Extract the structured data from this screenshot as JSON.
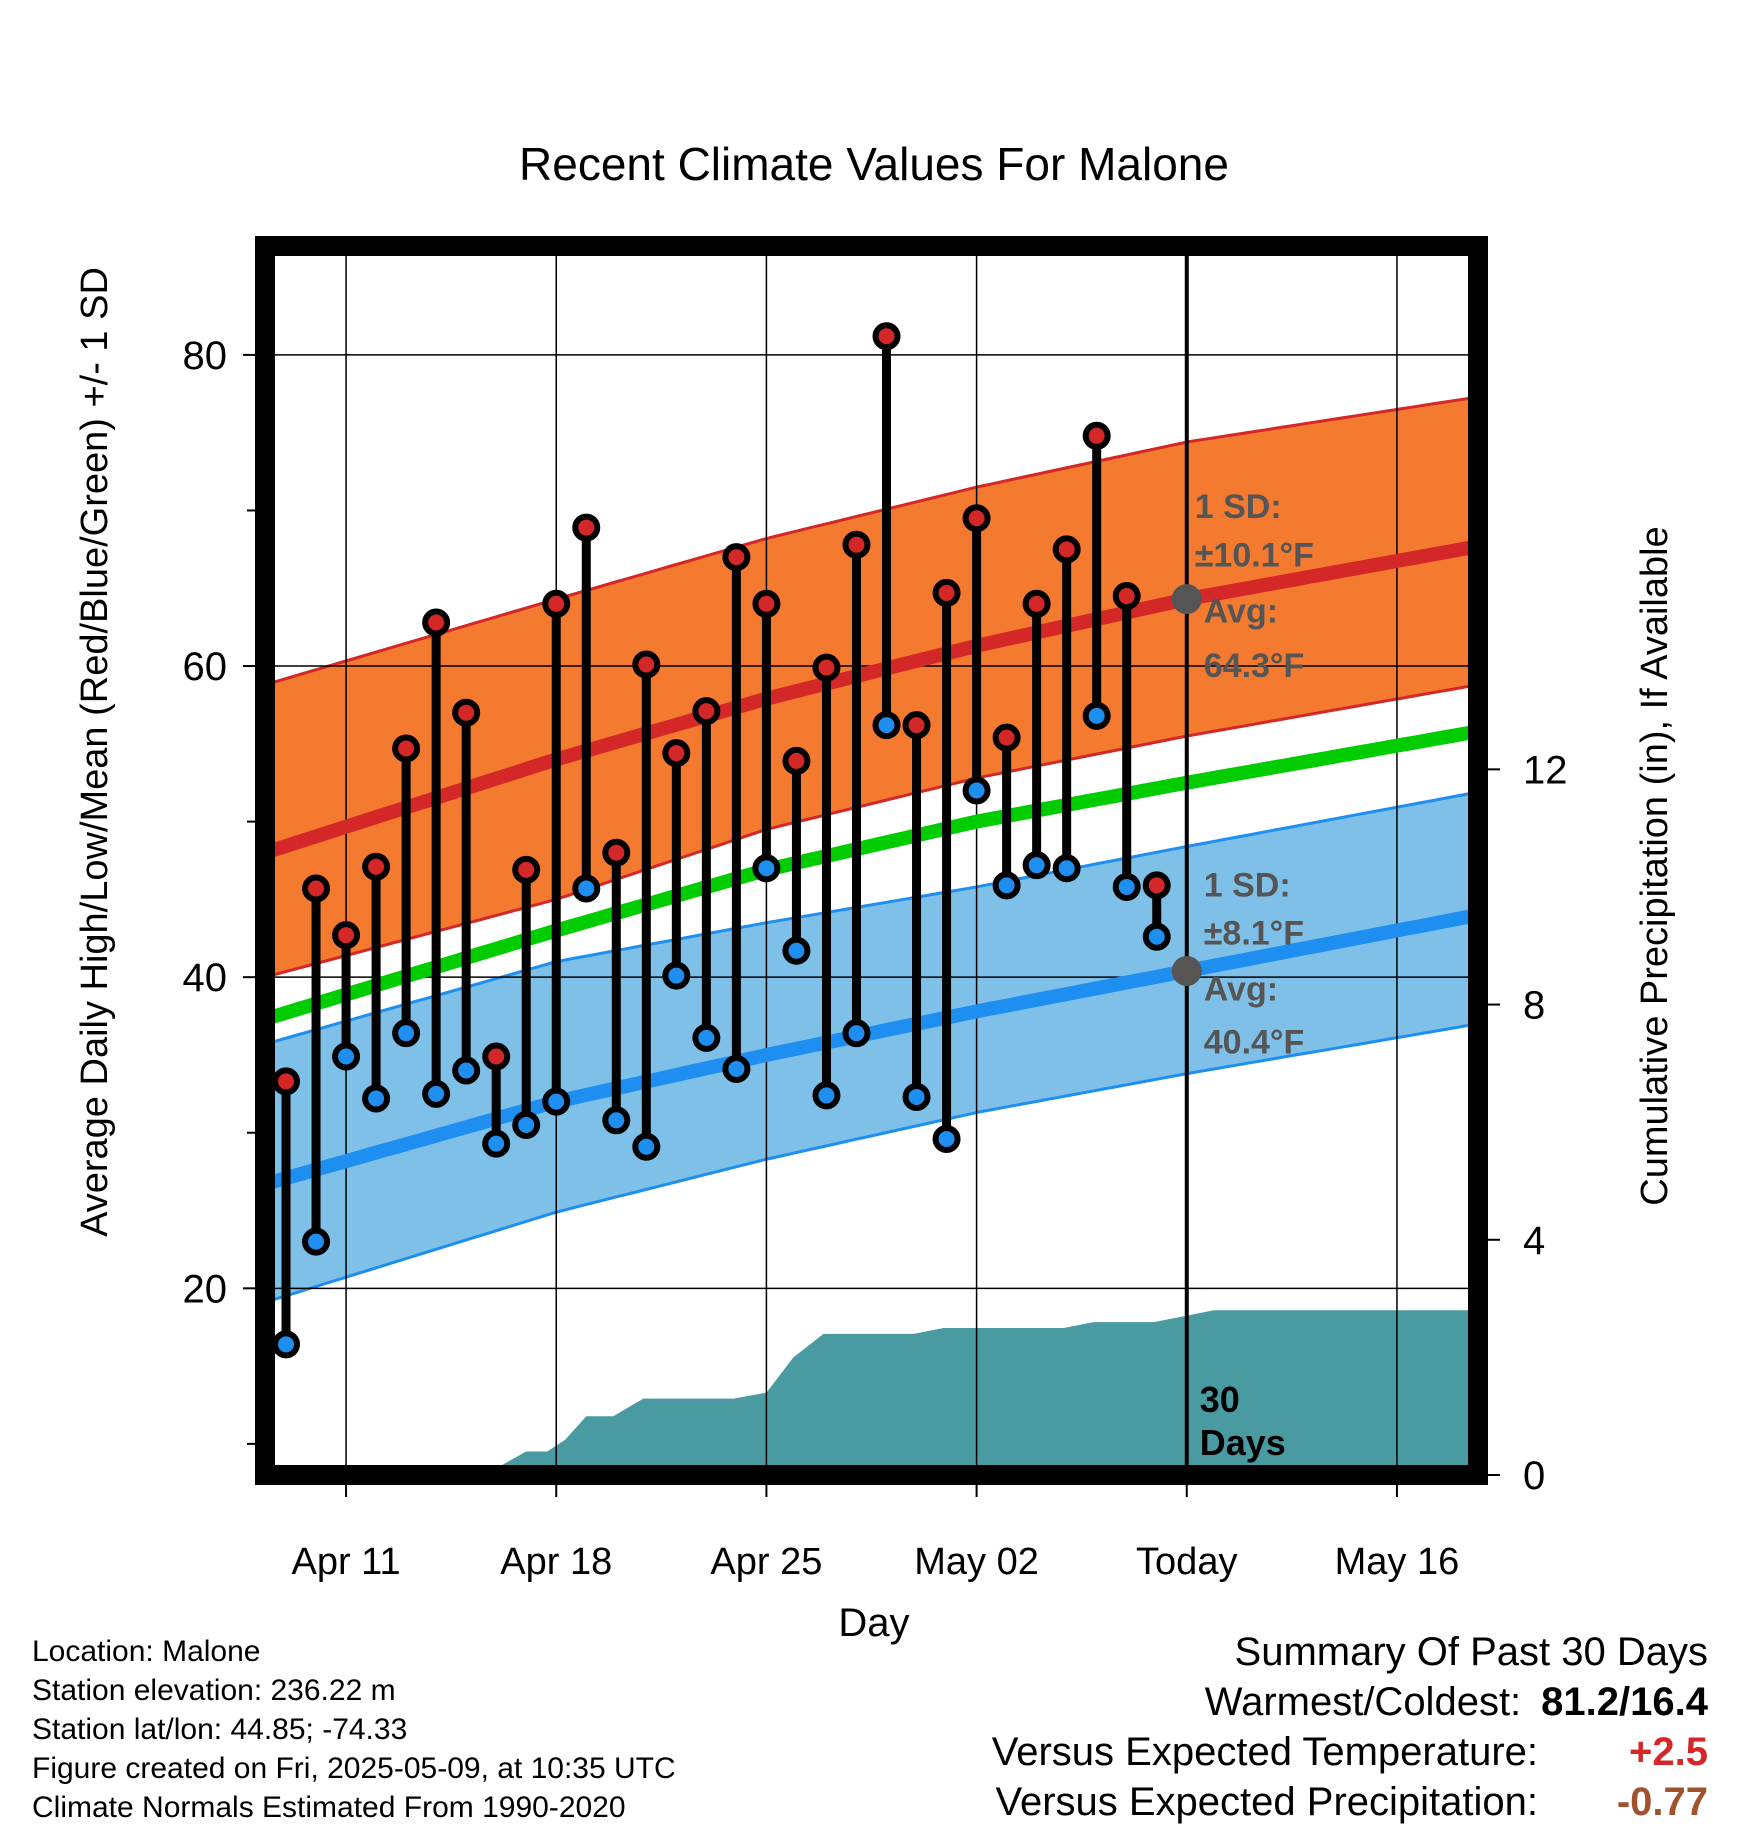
{
  "chart_data": {
    "type": "line",
    "title": "Recent Climate Values For Malone",
    "xlabel": "Day",
    "ylabel": "Average Daily High/Low/Mean (Red/Blue/Green) +/- 1 SD",
    "y2label": "Cumulative Precipitation (in), If Available",
    "x_ticks": [
      {
        "day": 0,
        "label": "Apr 11"
      },
      {
        "day": 7,
        "label": "Apr 18"
      },
      {
        "day": 14,
        "label": "Apr 25"
      },
      {
        "day": 21,
        "label": "May 02"
      },
      {
        "day": 28,
        "label": "Today"
      },
      {
        "day": 35,
        "label": "May 16"
      }
    ],
    "x_day_range": [
      -2.7,
      37.7
    ],
    "ylim": [
      8,
      87
    ],
    "y_ticks": [
      20,
      40,
      60,
      80
    ],
    "y2lim": [
      0,
      20.9
    ],
    "y2_ticks": [
      0,
      4,
      8,
      12
    ],
    "colors": {
      "high_band": "#f47a30",
      "high_line": "#d42727",
      "low_band": "#7fc0e8",
      "low_line": "#1e8ff0",
      "mean_line": "#00cc00",
      "precip": "#4a9aa2",
      "high_point": "#d42727",
      "low_point": "#1e8ff0",
      "avg_marker": "#555555",
      "annotation": "#555555"
    },
    "normals": {
      "days": [
        -2.7,
        7,
        14,
        21,
        28,
        37.7
      ],
      "high_avg": [
        48.0,
        54.0,
        57.9,
        61.3,
        64.3,
        67.7
      ],
      "high_sd_upper": [
        58.8,
        64.3,
        68.2,
        71.5,
        74.4,
        77.3
      ],
      "high_sd_lower": [
        40.0,
        45.0,
        49.5,
        52.8,
        55.5,
        58.8
      ],
      "mean": [
        37.3,
        43.0,
        46.9,
        50.0,
        52.5,
        55.8
      ],
      "low_avg": [
        26.7,
        32.0,
        35.0,
        37.8,
        40.4,
        44.0
      ],
      "low_sd_upper": [
        35.7,
        41.0,
        43.5,
        45.8,
        48.4,
        51.9
      ],
      "low_sd_lower": [
        19.1,
        24.9,
        28.3,
        31.3,
        33.8,
        37.0
      ]
    },
    "observations": {
      "days": [
        -2,
        -1,
        0,
        1,
        2,
        3,
        4,
        5,
        6,
        7,
        8,
        9,
        10,
        11,
        12,
        13,
        14,
        15,
        16,
        17,
        18,
        19,
        20,
        21,
        22,
        23,
        24,
        25,
        26,
        27
      ],
      "high": [
        33.3,
        45.7,
        42.7,
        47.1,
        54.7,
        62.8,
        57.0,
        34.9,
        46.9,
        64.0,
        68.9,
        48.0,
        60.1,
        54.4,
        57.1,
        67.0,
        64.0,
        53.9,
        59.9,
        67.8,
        81.2,
        56.2,
        64.7,
        69.5,
        55.4,
        64.0,
        67.5,
        74.8,
        64.5,
        45.9
      ],
      "low": [
        16.4,
        23.0,
        34.9,
        32.2,
        36.4,
        32.5,
        34.0,
        29.3,
        30.5,
        32.0,
        45.7,
        30.8,
        29.1,
        40.1,
        36.1,
        34.1,
        47.0,
        41.7,
        32.4,
        36.4,
        56.2,
        32.3,
        29.6,
        52.0,
        45.9,
        47.2,
        47.0,
        56.8,
        45.8,
        42.6
      ]
    },
    "precip": {
      "days": [
        -2.7,
        1.2,
        2.0,
        2.7,
        3.6,
        4.6,
        5.3,
        6.0,
        6.7,
        7.3,
        8.0,
        8.9,
        9.9,
        10.9,
        11.9,
        12.9,
        14.0,
        14.9,
        15.9,
        16.9,
        17.9,
        18.9,
        19.9,
        20.9,
        21.9,
        22.9,
        23.9,
        24.9,
        25.9,
        26.9,
        27.9,
        28.9,
        29.9,
        31.5,
        33.5,
        37.7
      ],
      "values": [
        0,
        0,
        0,
        0,
        0,
        0,
        0.2,
        0.4,
        0.4,
        0.6,
        1.0,
        1.0,
        1.3,
        1.3,
        1.3,
        1.3,
        1.4,
        2.0,
        2.4,
        2.4,
        2.4,
        2.4,
        2.5,
        2.5,
        2.5,
        2.5,
        2.5,
        2.6,
        2.6,
        2.6,
        2.7,
        2.8,
        2.8,
        2.8,
        2.8,
        2.8
      ]
    },
    "annotations": {
      "high_sd": "1 SD:",
      "high_sd_value": "±10.1°F",
      "high_avg": "Avg:",
      "high_avg_value": "64.3°F",
      "low_sd": "1 SD:",
      "low_sd_value": "±8.1°F",
      "low_avg": "Avg:",
      "low_avg_value": "40.4°F",
      "window_count": "30",
      "window_unit": "Days"
    },
    "today_day": 28,
    "avg_markers": [
      64.3,
      40.4
    ]
  },
  "meta": {
    "location": "Location: Malone",
    "elevation": "Station elevation: 236.22 m",
    "latlon": "Station lat/lon: 44.85; -74.33",
    "created": "Figure created on Fri, 2025-05-09, at 10:35 UTC",
    "normals": "Climate Normals Estimated From 1990-2020"
  },
  "summary": {
    "title": "Summary Of Past 30 Days",
    "warm_cold_label": "Warmest/Coldest:",
    "warm_cold_value": "81.2/16.4",
    "temp_label": "Versus Expected Temperature:",
    "temp_value": "+2.5",
    "temp_color": "#d42727",
    "precip_label": "Versus Expected Precipitation:",
    "precip_value": "-0.77",
    "precip_color": "#a0522d"
  }
}
